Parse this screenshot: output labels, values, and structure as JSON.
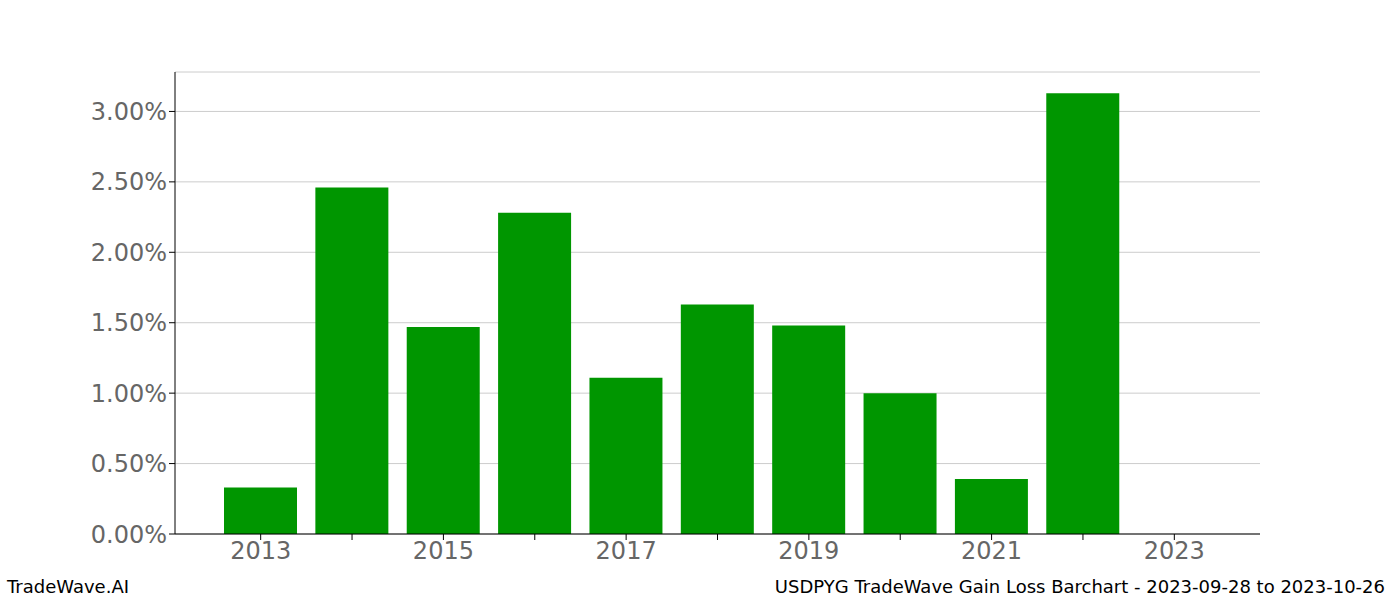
{
  "chart_data": {
    "type": "bar",
    "title": "USDPYG TradeWave Gain Loss Barchart - 2023-09-28 to 2023-10-26",
    "annotations": [
      "TradeWave.AI"
    ],
    "categories": [
      "2013",
      null,
      "2015",
      null,
      "2017",
      null,
      "2019",
      null,
      "2021",
      null,
      "2023"
    ],
    "values": [
      0.33,
      2.46,
      1.47,
      2.28,
      1.11,
      1.63,
      1.48,
      1.0,
      0.39,
      3.13,
      null
    ],
    "color": "#009600",
    "ylim": [
      0,
      3.28
    ],
    "yticks": [
      {
        "value": 0,
        "label": "0.00%"
      },
      {
        "value": 0.5,
        "label": "0.50%"
      },
      {
        "value": 1,
        "label": "1.00%"
      },
      {
        "value": 1.5,
        "label": "1.50%"
      },
      {
        "value": 2,
        "label": "2.00%"
      },
      {
        "value": 2.5,
        "label": "2.50%"
      },
      {
        "value": 3,
        "label": "3.00%"
      }
    ],
    "grid": true
  }
}
